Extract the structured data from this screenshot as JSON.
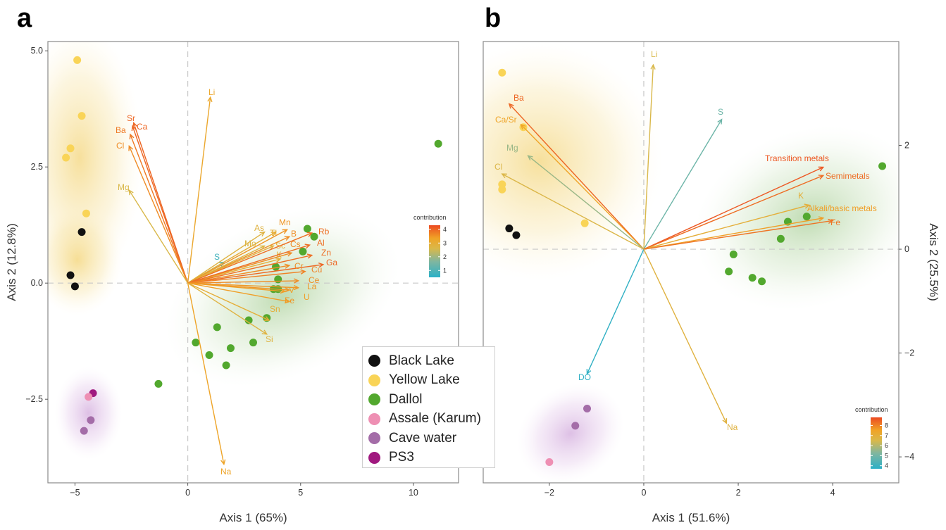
{
  "panels": [
    {
      "letter": "a"
    },
    {
      "letter": "b"
    }
  ],
  "legend": [
    {
      "label": "Black Lake",
      "color": "#111111"
    },
    {
      "label": "Yellow Lake",
      "color": "#f9d457"
    },
    {
      "label": "Dallol",
      "color": "#52a82e"
    },
    {
      "label": "Assale (Karum)",
      "color": "#ee8fb3"
    },
    {
      "label": "Cave water",
      "color": "#a46da8"
    },
    {
      "label": "PS3",
      "color": "#a0197f"
    }
  ],
  "chart_data": [
    {
      "type": "biplot",
      "panel": "a",
      "xlabel": "Axis 1 (65%)",
      "ylabel": "Axis 2 (12.8%)",
      "xlim": [
        -6.2,
        12.0
      ],
      "ylim": [
        -4.3,
        5.2
      ],
      "xticks": [
        {
          "v": -5,
          "label": "−5"
        },
        {
          "v": 0,
          "label": "0"
        },
        {
          "v": 5,
          "label": "5"
        },
        {
          "v": 10,
          "label": "10"
        }
      ],
      "yticks": [
        {
          "v": 5.0,
          "label": "5.0"
        },
        {
          "v": 2.5,
          "label": "2.5"
        },
        {
          "v": 0.0,
          "label": "0.0"
        },
        {
          "v": -2.5,
          "label": "−2.5"
        }
      ],
      "colorbar": {
        "title": "contribution",
        "range": [
          0.5,
          4.3
        ],
        "ticks": [
          {
            "v": 1,
            "label": "1"
          },
          {
            "v": 2,
            "label": "2"
          },
          {
            "v": 3,
            "label": "3"
          },
          {
            "v": 4,
            "label": "4"
          }
        ]
      },
      "samples": [
        {
          "group": "Yellow Lake",
          "x": -4.9,
          "y": 4.8
        },
        {
          "group": "Yellow Lake",
          "x": -4.7,
          "y": 3.6
        },
        {
          "group": "Yellow Lake",
          "x": -5.2,
          "y": 2.9
        },
        {
          "group": "Yellow Lake",
          "x": -5.4,
          "y": 2.7
        },
        {
          "group": "Yellow Lake",
          "x": -4.5,
          "y": 1.5
        },
        {
          "group": "Black Lake",
          "x": -4.7,
          "y": 1.1
        },
        {
          "group": "Black Lake",
          "x": -5.2,
          "y": 0.17
        },
        {
          "group": "Black Lake",
          "x": -5.0,
          "y": -0.07
        },
        {
          "group": "Dallol",
          "x": 11.1,
          "y": 3.0
        },
        {
          "group": "Dallol",
          "x": 5.3,
          "y": 1.17
        },
        {
          "group": "Dallol",
          "x": 5.6,
          "y": 1.0
        },
        {
          "group": "Dallol",
          "x": 5.1,
          "y": 0.68
        },
        {
          "group": "Dallol",
          "x": 3.9,
          "y": 0.35
        },
        {
          "group": "Dallol",
          "x": 4.0,
          "y": 0.08
        },
        {
          "group": "Dallol",
          "x": 3.8,
          "y": -0.13
        },
        {
          "group": "Dallol",
          "x": 4.0,
          "y": -0.13
        },
        {
          "group": "Dallol",
          "x": 3.5,
          "y": -0.75
        },
        {
          "group": "Dallol",
          "x": 2.7,
          "y": -0.8
        },
        {
          "group": "Dallol",
          "x": 1.3,
          "y": -0.95
        },
        {
          "group": "Dallol",
          "x": 0.35,
          "y": -1.28
        },
        {
          "group": "Dallol",
          "x": 2.9,
          "y": -1.28
        },
        {
          "group": "Dallol",
          "x": 1.9,
          "y": -1.4
        },
        {
          "group": "Dallol",
          "x": 0.95,
          "y": -1.55
        },
        {
          "group": "Dallol",
          "x": 1.7,
          "y": -1.77
        },
        {
          "group": "Dallol",
          "x": -1.3,
          "y": -2.17
        },
        {
          "group": "PS3",
          "x": -4.2,
          "y": -2.37
        },
        {
          "group": "Assale (Karum)",
          "x": -4.4,
          "y": -2.45
        },
        {
          "group": "Cave water",
          "x": -4.3,
          "y": -2.95
        },
        {
          "group": "Cave water",
          "x": -4.6,
          "y": -3.18
        }
      ],
      "variables": [
        {
          "name": "Li",
          "x": 1.0,
          "y": 4.0,
          "contribution": 3.2
        },
        {
          "name": "Sr",
          "x": -2.4,
          "y": 3.45,
          "contribution": 4.0
        },
        {
          "name": "Ca",
          "x": -2.45,
          "y": 3.38,
          "contribution": 4.0
        },
        {
          "name": "Ba",
          "x": -2.55,
          "y": 3.2,
          "contribution": 3.8
        },
        {
          "name": "Cl",
          "x": -2.6,
          "y": 2.95,
          "contribution": 3.6
        },
        {
          "name": "Mg",
          "x": -2.6,
          "y": 2.0,
          "contribution": 2.6
        },
        {
          "name": "S",
          "x": 1.6,
          "y": 0.45,
          "contribution": 0.8
        },
        {
          "name": "As",
          "x": 3.4,
          "y": 1.1,
          "contribution": 2.8
        },
        {
          "name": "Tl",
          "x": 3.9,
          "y": 1.1,
          "contribution": 3.0
        },
        {
          "name": "Mn",
          "x": 4.4,
          "y": 1.15,
          "contribution": 3.5
        },
        {
          "name": "B",
          "x": 4.5,
          "y": 1.0,
          "contribution": 3.6
        },
        {
          "name": "Mo",
          "x": 3.4,
          "y": 0.8,
          "contribution": 2.7
        },
        {
          "name": "Sc",
          "x": 3.8,
          "y": 0.8,
          "contribution": 2.9
        },
        {
          "name": "Cs",
          "x": 4.6,
          "y": 0.65,
          "contribution": 3.6
        },
        {
          "name": "K",
          "x": 4.1,
          "y": 0.52,
          "contribution": 3.0
        },
        {
          "name": "Rb",
          "x": 5.5,
          "y": 1.08,
          "contribution": 3.9
        },
        {
          "name": "Al",
          "x": 5.4,
          "y": 0.82,
          "contribution": 3.9
        },
        {
          "name": "Zn",
          "x": 5.5,
          "y": 0.6,
          "contribution": 3.9
        },
        {
          "name": "Ga",
          "x": 6.0,
          "y": 0.4,
          "contribution": 4.0
        },
        {
          "name": "Cr",
          "x": 4.5,
          "y": 0.38,
          "contribution": 3.6
        },
        {
          "name": "Cu",
          "x": 5.2,
          "y": 0.25,
          "contribution": 3.7
        },
        {
          "name": "Ce",
          "x": 4.9,
          "y": 0.05,
          "contribution": 3.6
        },
        {
          "name": "La",
          "x": 4.9,
          "y": -0.1,
          "contribution": 3.5
        },
        {
          "name": "Fe",
          "x": 4.5,
          "y": -0.15,
          "contribution": 3.5
        },
        {
          "name": "V",
          "x": 4.3,
          "y": -0.18,
          "contribution": 3.4
        },
        {
          "name": "U",
          "x": 4.5,
          "y": -0.4,
          "contribution": 3.4
        },
        {
          "name": "Sn",
          "x": 3.6,
          "y": -0.8,
          "contribution": 3.0
        },
        {
          "name": "Si",
          "x": 3.5,
          "y": -1.1,
          "contribution": 2.8
        },
        {
          "name": "Na",
          "x": 1.6,
          "y": -3.9,
          "contribution": 3.3
        }
      ]
    },
    {
      "type": "biplot",
      "panel": "b",
      "xlabel": "Axis 1 (51.6%)",
      "ylabel": "Axis 2 (25.5%)",
      "xlim": [
        -3.4,
        5.4
      ],
      "ylim": [
        -4.5,
        4.0
      ],
      "xticks": [
        {
          "v": -2,
          "label": "−2"
        },
        {
          "v": 0,
          "label": "0"
        },
        {
          "v": 2,
          "label": "2"
        },
        {
          "v": 4,
          "label": "4"
        }
      ],
      "yticks": [
        {
          "v": 2,
          "label": "2"
        },
        {
          "v": 0,
          "label": "0"
        },
        {
          "v": -2,
          "label": "−2"
        },
        {
          "v": -4,
          "label": "−4"
        }
      ],
      "colorbar": {
        "title": "contribution",
        "range": [
          3.7,
          8.8
        ],
        "ticks": [
          {
            "v": 4,
            "label": "4"
          },
          {
            "v": 5,
            "label": "5"
          },
          {
            "v": 6,
            "label": "6"
          },
          {
            "v": 7,
            "label": "7"
          },
          {
            "v": 8,
            "label": "8"
          }
        ]
      },
      "samples": [
        {
          "group": "Yellow Lake",
          "x": -3.0,
          "y": 3.4
        },
        {
          "group": "Yellow Lake",
          "x": -2.55,
          "y": 2.35
        },
        {
          "group": "Yellow Lake",
          "x": -3.0,
          "y": 1.25
        },
        {
          "group": "Yellow Lake",
          "x": -3.0,
          "y": 1.15
        },
        {
          "group": "Yellow Lake",
          "x": -1.25,
          "y": 0.5
        },
        {
          "group": "Black Lake",
          "x": -2.85,
          "y": 0.4
        },
        {
          "group": "Black Lake",
          "x": -2.7,
          "y": 0.27
        },
        {
          "group": "Dallol",
          "x": 5.05,
          "y": 1.6
        },
        {
          "group": "Dallol",
          "x": 3.45,
          "y": 0.63
        },
        {
          "group": "Dallol",
          "x": 3.05,
          "y": 0.53
        },
        {
          "group": "Dallol",
          "x": 2.9,
          "y": 0.2
        },
        {
          "group": "Dallol",
          "x": 1.9,
          "y": -0.1
        },
        {
          "group": "Dallol",
          "x": 1.8,
          "y": -0.43
        },
        {
          "group": "Dallol",
          "x": 2.3,
          "y": -0.55
        },
        {
          "group": "Dallol",
          "x": 2.5,
          "y": -0.62
        },
        {
          "group": "Cave water",
          "x": -1.2,
          "y": -3.07
        },
        {
          "group": "Cave water",
          "x": -1.45,
          "y": -3.4
        },
        {
          "group": "Assale (Karum)",
          "x": -2.0,
          "y": -4.1
        }
      ],
      "variables": [
        {
          "name": "Li",
          "x": 0.2,
          "y": 3.55,
          "contribution": 6.5
        },
        {
          "name": "Ba",
          "x": -2.85,
          "y": 2.8,
          "contribution": 8.4
        },
        {
          "name": "Ca/Sr",
          "x": -2.6,
          "y": 2.4,
          "contribution": 7.5
        },
        {
          "name": "Mg",
          "x": -2.45,
          "y": 1.8,
          "contribution": 5.6
        },
        {
          "name": "Cl",
          "x": -3.0,
          "y": 1.45,
          "contribution": 6.6
        },
        {
          "name": "S",
          "x": 1.65,
          "y": 2.5,
          "contribution": 4.9
        },
        {
          "name": "Transition metals",
          "x": 3.8,
          "y": 1.58,
          "contribution": 8.6
        },
        {
          "name": "Semimetals",
          "x": 3.8,
          "y": 1.42,
          "contribution": 8.3
        },
        {
          "name": "K",
          "x": 3.5,
          "y": 0.85,
          "contribution": 7.0
        },
        {
          "name": "Alkali/basic metals",
          "x": 3.8,
          "y": 0.6,
          "contribution": 7.6
        },
        {
          "name": "Fe",
          "x": 4.0,
          "y": 0.55,
          "contribution": 8.2
        },
        {
          "name": "DO",
          "x": -1.2,
          "y": -2.4,
          "contribution": 3.8
        },
        {
          "name": "Na",
          "x": 1.75,
          "y": -3.35,
          "contribution": 6.8
        }
      ]
    }
  ]
}
